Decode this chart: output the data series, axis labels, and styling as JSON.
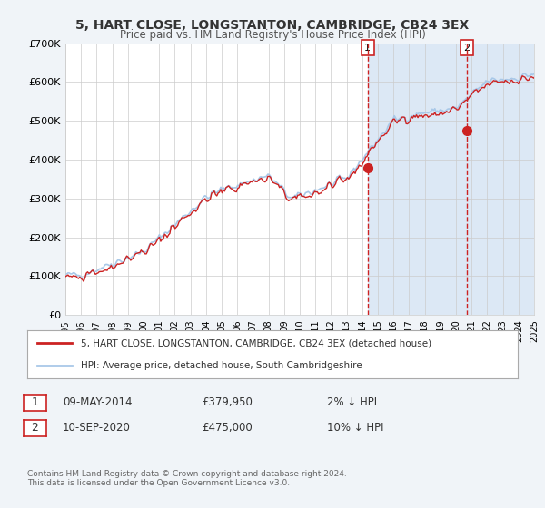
{
  "title": "5, HART CLOSE, LONGSTANTON, CAMBRIDGE, CB24 3EX",
  "subtitle": "Price paid vs. HM Land Registry's House Price Index (HPI)",
  "background_color": "#f0f4f8",
  "plot_bg_color": "#ffffff",
  "hpi_color": "#a8c8e8",
  "price_color": "#cc2222",
  "marker1_date": 2014.35,
  "marker1_price": 379950,
  "marker2_date": 2020.7,
  "marker2_price": 475000,
  "vline_color": "#cc2222",
  "highlight_bg": "#dce8f5",
  "ylim": [
    0,
    700000
  ],
  "xlim_start": 1995,
  "xlim_end": 2025,
  "yticks": [
    0,
    100000,
    200000,
    300000,
    400000,
    500000,
    600000,
    700000
  ],
  "ytick_labels": [
    "£0",
    "£100K",
    "£200K",
    "£300K",
    "£400K",
    "£500K",
    "£600K",
    "£700K"
  ],
  "xticks": [
    1995,
    1996,
    1997,
    1998,
    1999,
    2000,
    2001,
    2002,
    2003,
    2004,
    2005,
    2006,
    2007,
    2008,
    2009,
    2010,
    2011,
    2012,
    2013,
    2014,
    2015,
    2016,
    2017,
    2018,
    2019,
    2020,
    2021,
    2022,
    2023,
    2024,
    2025
  ],
  "legend_label_price": "5, HART CLOSE, LONGSTANTON, CAMBRIDGE, CB24 3EX (detached house)",
  "legend_label_hpi": "HPI: Average price, detached house, South Cambridgeshire",
  "annotation1_date": "09-MAY-2014",
  "annotation1_price": "£379,950",
  "annotation1_change": "2% ↓ HPI",
  "annotation2_date": "10-SEP-2020",
  "annotation2_price": "£475,000",
  "annotation2_change": "10% ↓ HPI",
  "footer": "Contains HM Land Registry data © Crown copyright and database right 2024.\nThis data is licensed under the Open Government Licence v3.0."
}
